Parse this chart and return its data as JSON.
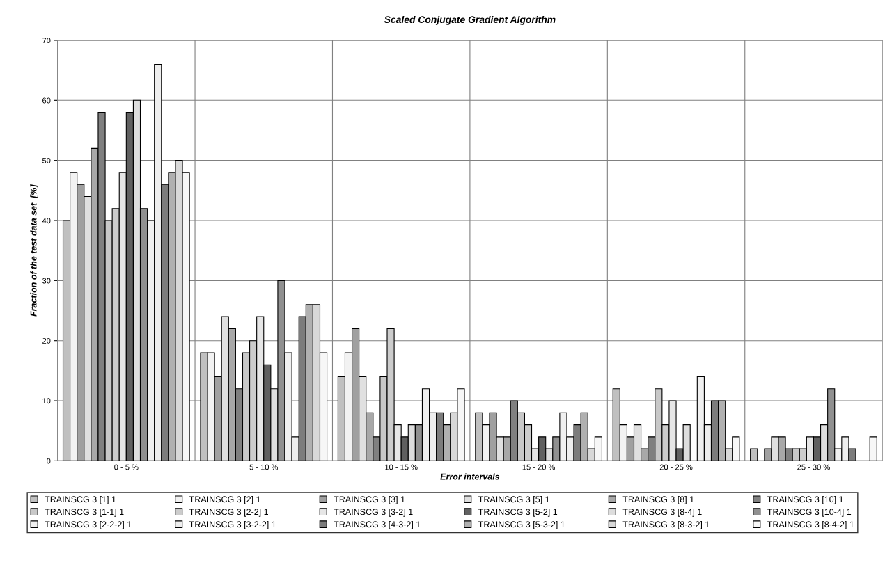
{
  "chart_data": {
    "type": "bar",
    "title": "Scaled Conjugate Gradient Algorithm",
    "xlabel": "Error intervals",
    "ylabel": "Fraction of the test data set  [%]",
    "categories": [
      "0 - 5 %",
      "5 - 10 %",
      "10 - 15 %",
      "15 - 20 %",
      "20 - 25 %",
      "25 - 30 %"
    ],
    "ylim": [
      0,
      70
    ],
    "yticks": [
      0,
      10,
      20,
      30,
      40,
      50,
      60,
      70
    ],
    "grid": true,
    "legend": "bottom",
    "series": [
      {
        "name": "TRAINSCG 3 [1] 1",
        "color": "#c0c0c0",
        "values": [
          40,
          18,
          14,
          8,
          12,
          2
        ]
      },
      {
        "name": "TRAINSCG 3 [2] 1",
        "color": "#f2f2f2",
        "values": [
          48,
          18,
          18,
          6,
          6,
          null
        ]
      },
      {
        "name": "TRAINSCG 3 [3] 1",
        "color": "#a0a0a0",
        "values": [
          46,
          14,
          22,
          8,
          4,
          2
        ]
      },
      {
        "name": "TRAINSCG 3 [5] 1",
        "color": "#e0e0e0",
        "values": [
          44,
          24,
          14,
          4,
          6,
          4
        ]
      },
      {
        "name": "TRAINSCG 3 [8] 1",
        "color": "#a8a8a8",
        "values": [
          52,
          22,
          8,
          4,
          2,
          4
        ]
      },
      {
        "name": "TRAINSCG 3 [10] 1",
        "color": "#808080",
        "values": [
          58,
          12,
          4,
          10,
          4,
          2
        ]
      },
      {
        "name": "TRAINSCG 3 [1-1] 1",
        "color": "#c8c8c8",
        "values": [
          40,
          18,
          14,
          8,
          12,
          2
        ]
      },
      {
        "name": "TRAINSCG 3 [2-2] 1",
        "color": "#cccccc",
        "values": [
          42,
          20,
          22,
          6,
          6,
          2
        ]
      },
      {
        "name": "TRAINSCG 3 [3-2] 1",
        "color": "#e6e6e6",
        "values": [
          48,
          24,
          6,
          2,
          10,
          4
        ]
      },
      {
        "name": "TRAINSCG 3 [5-2] 1",
        "color": "#606060",
        "values": [
          58,
          16,
          4,
          4,
          2,
          4
        ]
      },
      {
        "name": "TRAINSCG 3 [8-4] 1",
        "color": "#dddddd",
        "values": [
          60,
          12,
          6,
          2,
          6,
          6
        ]
      },
      {
        "name": "TRAINSCG 3 [10-4] 1",
        "color": "#909090",
        "values": [
          42,
          30,
          6,
          4,
          null,
          12
        ]
      },
      {
        "name": "TRAINSCG 3 [2-2-2] 1",
        "color": "#f0f0f0",
        "values": [
          40,
          18,
          12,
          8,
          14,
          2
        ]
      },
      {
        "name": "TRAINSCG 3 [3-2-2] 1",
        "color": "#eeeeee",
        "values": [
          66,
          4,
          8,
          4,
          6,
          4
        ]
      },
      {
        "name": "TRAINSCG 3 [4-3-2] 1",
        "color": "#7c7c7c",
        "values": [
          46,
          24,
          8,
          6,
          10,
          2
        ]
      },
      {
        "name": "TRAINSCG 3 [5-3-2] 1",
        "color": "#b0b0b0",
        "values": [
          48,
          26,
          6,
          8,
          10,
          null
        ]
      },
      {
        "name": "TRAINSCG 3 [8-3-2] 1",
        "color": "#d8d8d8",
        "values": [
          50,
          26,
          8,
          2,
          2,
          null
        ]
      },
      {
        "name": "TRAINSCG 3 [8-4-2] 1",
        "color": "#f7f7f7",
        "values": [
          48,
          18,
          12,
          4,
          4,
          4
        ]
      }
    ]
  }
}
